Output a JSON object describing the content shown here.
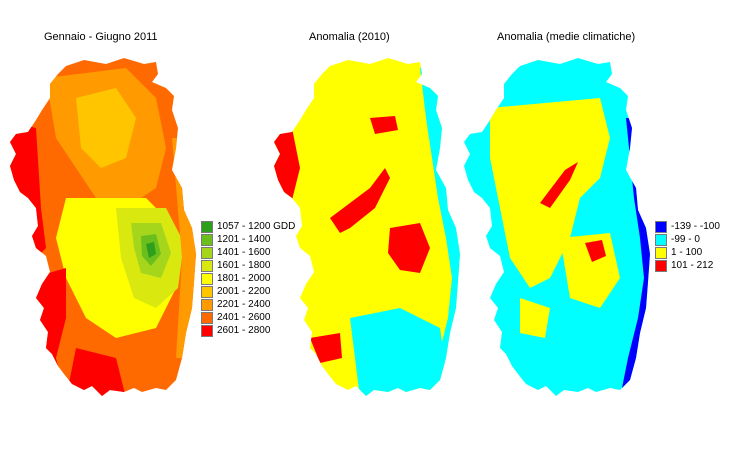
{
  "panels": [
    {
      "title": "Gennaio - Giugno 2011",
      "legend": [
        {
          "label": "1057 - 1200 GDD",
          "color": "#2e9f1a"
        },
        {
          "label": "1201 - 1400",
          "color": "#6bbf1c"
        },
        {
          "label": "1401 - 1600",
          "color": "#a6d61c"
        },
        {
          "label": "1601 - 1800",
          "color": "#d9e80e"
        },
        {
          "label": "1801 - 2000",
          "color": "#ffff00"
        },
        {
          "label": "2001 - 2200",
          "color": "#ffc600"
        },
        {
          "label": "2201 - 2400",
          "color": "#ff9a00"
        },
        {
          "label": "2401 - 2600",
          "color": "#ff6a00"
        },
        {
          "label": "2601 - 2800",
          "color": "#ff0000"
        }
      ]
    },
    {
      "title": "Anomalia (2010)",
      "legend": []
    },
    {
      "title": "Anomalia (medie climatiche)",
      "legend": [
        {
          "label": "-139 - -100",
          "color": "#0000ff"
        },
        {
          "label": "-99 - 0",
          "color": "#00ffff"
        },
        {
          "label": "1 - 100",
          "color": "#ffff00"
        },
        {
          "label": "101 - 212",
          "color": "#ff0000"
        }
      ]
    }
  ]
}
